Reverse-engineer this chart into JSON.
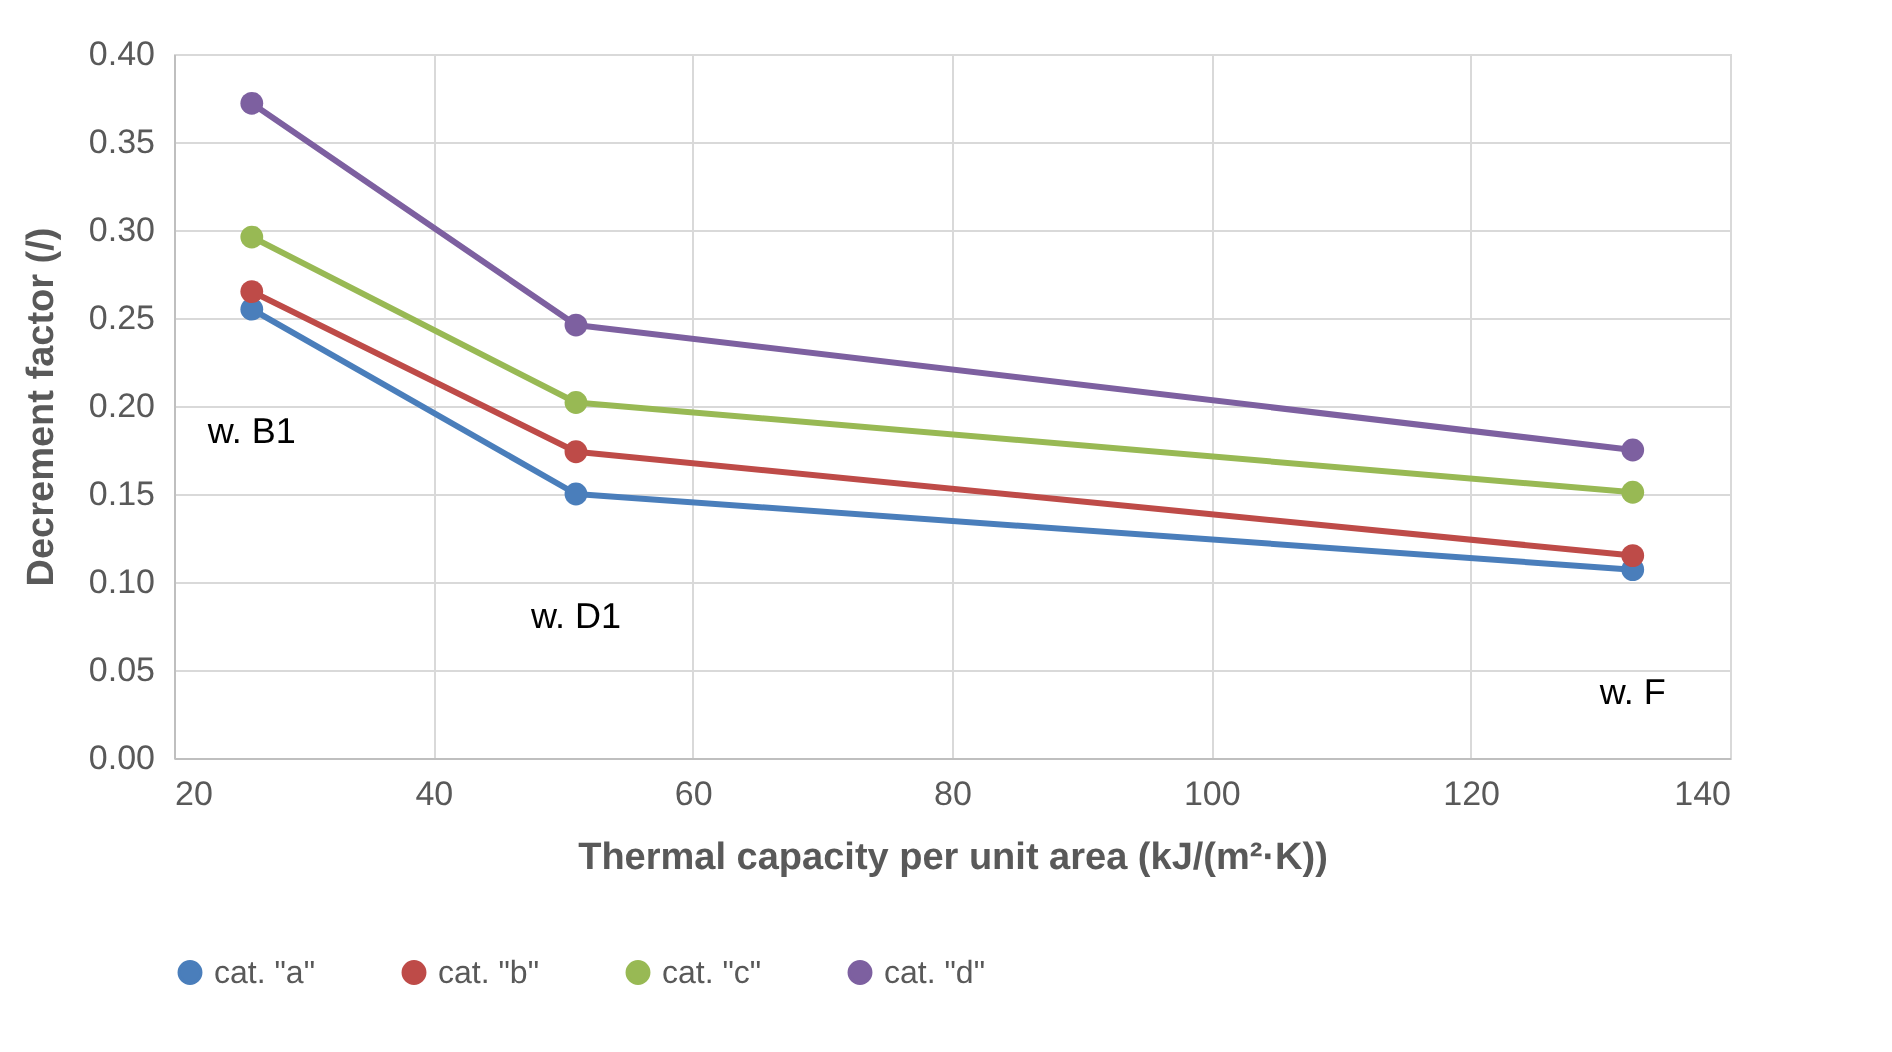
{
  "chart_data": {
    "type": "line",
    "xlabel": "Thermal capacity per unit area  (kJ/(m²·K))",
    "ylabel": "Decrement factor (/)",
    "x": [
      26,
      51,
      132.5
    ],
    "series": [
      {
        "name": "cat. \"a\"",
        "color": "#4a7ebb",
        "values": [
          0.255,
          0.15,
          0.107
        ]
      },
      {
        "name": "cat. \"b\"",
        "color": "#be4b48",
        "values": [
          0.265,
          0.174,
          0.115
        ]
      },
      {
        "name": "cat. \"c\"",
        "color": "#98b954",
        "values": [
          0.296,
          0.202,
          0.151
        ]
      },
      {
        "name": "cat. \"d\"",
        "color": "#7d60a0",
        "values": [
          0.372,
          0.246,
          0.175
        ]
      }
    ],
    "xlim": [
      20,
      140
    ],
    "xticks": [
      20,
      40,
      60,
      80,
      100,
      120,
      140
    ],
    "ylim": [
      0,
      0.4
    ],
    "yticks": [
      {
        "value": 0,
        "label": "0.00"
      },
      {
        "value": 0.05,
        "label": "0.05"
      },
      {
        "value": 0.1,
        "label": "0.10"
      },
      {
        "value": 0.15,
        "label": "0.15"
      },
      {
        "value": 0.2,
        "label": "0.20"
      },
      {
        "value": 0.25,
        "label": "0.25"
      },
      {
        "value": 0.3,
        "label": "0.30"
      },
      {
        "value": 0.35,
        "label": "0.35"
      },
      {
        "value": 0.4,
        "label": "0.40"
      }
    ],
    "annotations": [
      "w. B1",
      "w. D1",
      "w. F"
    ],
    "grid": true,
    "legend": "bottom",
    "marker": "circle",
    "line_style": "solid"
  }
}
